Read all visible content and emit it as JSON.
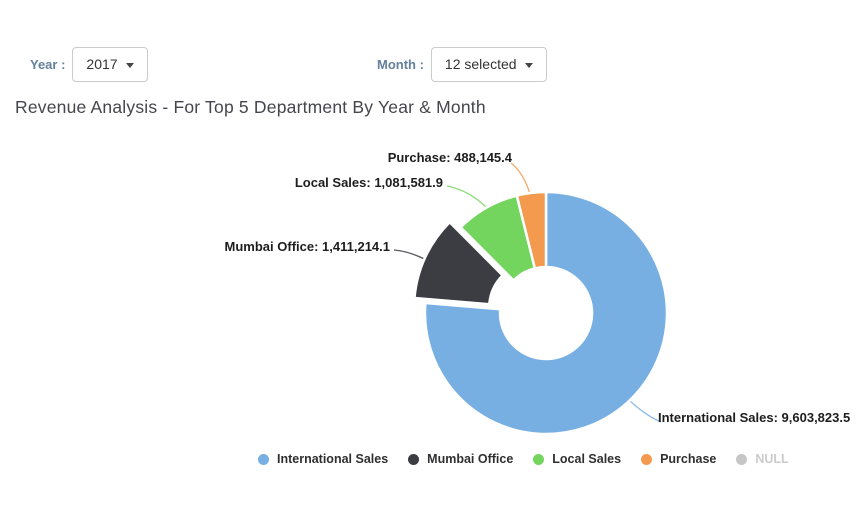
{
  "filters": {
    "year": {
      "label": "Year :",
      "value": "2017"
    },
    "month": {
      "label": "Month :",
      "value": "12 selected"
    }
  },
  "title": "Revenue Analysis - For Top 5 Department By Year & Month",
  "colors": {
    "filter_label": "#64809c",
    "title_text": "#45454d",
    "legend_text": "#2f2f2f",
    "legend_muted": "#cbcbcb",
    "dropdown_border": "#cbcbcb"
  },
  "chart_data": {
    "type": "pie",
    "subtype": "donut",
    "legend_position": "bottom",
    "inner_radius_ratio": 0.38,
    "start_angle_deg": 0,
    "direction": "clockwise",
    "total": 12584764.9,
    "series": [
      {
        "name": "International Sales",
        "value": 9603823.5,
        "color": "#77afe3",
        "label": "International Sales: 9,603,823.5",
        "exploded": false,
        "hidden": false
      },
      {
        "name": "Mumbai Office",
        "value": 1411214.1,
        "color": "#3c3c43",
        "label": "Mumbai Office: 1,411,214.1",
        "exploded": true,
        "hidden": false
      },
      {
        "name": "Local Sales",
        "value": 1081581.9,
        "color": "#74d55e",
        "label": "Local Sales: 1,081,581.9",
        "exploded": false,
        "hidden": false
      },
      {
        "name": "Purchase",
        "value": 488145.4,
        "color": "#f39a4f",
        "label": "Purchase: 488,145.4",
        "exploded": false,
        "hidden": false
      },
      {
        "name": "NULL",
        "value": 0,
        "color": "#c6c6c6",
        "label": "NULL",
        "exploded": false,
        "hidden": true
      }
    ]
  }
}
